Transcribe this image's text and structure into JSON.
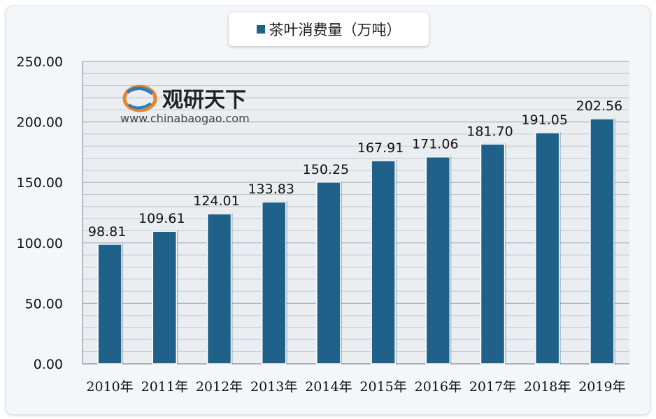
{
  "chart_data": {
    "type": "bar",
    "title": "",
    "xlabel": "",
    "ylabel": "",
    "categories": [
      "2010年",
      "2011年",
      "2012年",
      "2013年",
      "2014年",
      "2015年",
      "2016年",
      "2017年",
      "2018年",
      "2019年"
    ],
    "series": [
      {
        "name": "茶叶消费量（万吨）",
        "values": [
          98.81,
          109.61,
          124.01,
          133.83,
          150.25,
          167.91,
          171.06,
          181.7,
          191.05,
          202.56
        ],
        "labels": [
          "98.81",
          "109.61",
          "124.01",
          "133.83",
          "150.25",
          "167.91",
          "171.06",
          "181.70",
          "191.05",
          "202.56"
        ],
        "color": "#1f6189"
      }
    ],
    "ylim": [
      0,
      250
    ],
    "yticks": [
      0,
      50,
      100,
      150,
      200,
      250
    ],
    "ytick_labels": [
      "0.00",
      "50.00",
      "100.00",
      "150.00",
      "200.00",
      "250.00"
    ],
    "grid": true,
    "legend_position": "top-center"
  },
  "watermark": {
    "name": "观研天下",
    "url": "www.chinabaogao.com"
  }
}
